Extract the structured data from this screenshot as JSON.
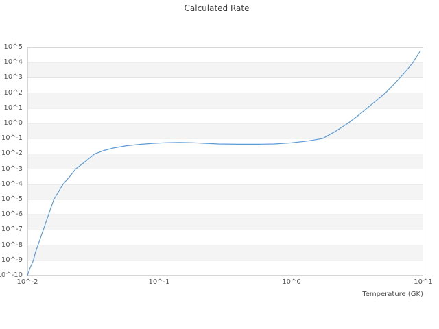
{
  "title": "Calculated Rate",
  "xlabel": "Temperature (GK)",
  "chart_data": {
    "type": "line",
    "title": "Calculated Rate",
    "xlabel": "Temperature (GK)",
    "ylabel": "",
    "x_scale": "log10",
    "y_scale": "log10",
    "xlim_log10": [
      -2,
      1
    ],
    "ylim_log10": [
      -10,
      5
    ],
    "grid": "horizontal-only",
    "legend": "none",
    "x_ticks": [
      {
        "log10": -2,
        "label": "10^-2"
      },
      {
        "log10": -1,
        "label": "10^-1"
      },
      {
        "log10": 0,
        "label": "10^0"
      },
      {
        "log10": 1,
        "label": "10^1"
      }
    ],
    "y_ticks": [
      {
        "log10": 5,
        "label": "10^5"
      },
      {
        "log10": 4,
        "label": "10^4"
      },
      {
        "log10": 3,
        "label": "10^3"
      },
      {
        "log10": 2,
        "label": "10^2"
      },
      {
        "log10": 1,
        "label": "10^1"
      },
      {
        "log10": 0,
        "label": "10^0"
      },
      {
        "log10": -1,
        "label": "10^-1"
      },
      {
        "log10": -2,
        "label": "10^-2"
      },
      {
        "log10": -3,
        "label": "10^-3"
      },
      {
        "log10": -4,
        "label": "10^-4"
      },
      {
        "log10": -5,
        "label": "10^-5"
      },
      {
        "log10": -6,
        "label": "10^-6"
      },
      {
        "log10": -7,
        "label": "10^-7"
      },
      {
        "log10": -8,
        "label": "10^-8"
      },
      {
        "log10": -9,
        "label": "10^-9"
      },
      {
        "log10": -10,
        "label": "10^-10"
      }
    ],
    "shaded_bands_log10": [
      [
        4,
        3
      ],
      [
        2,
        1
      ],
      [
        0,
        -1
      ],
      [
        -2,
        -3
      ],
      [
        -4,
        -5
      ],
      [
        -6,
        -7
      ],
      [
        -8,
        -9
      ]
    ],
    "colors": {
      "line": "#5b9bd5",
      "band": "#f4f4f4",
      "grid": "#e3e3e3",
      "border": "#d6d6d6",
      "plot_bg": "#ffffff",
      "tick_text": "#555555",
      "title_text": "#3f3f3f"
    },
    "series": [
      {
        "name": "calculated-rate",
        "color": "#5b9bd5",
        "points_log10": [
          [
            -2.0,
            -10.0
          ],
          [
            -1.98,
            -9.5
          ],
          [
            -1.955,
            -9.0
          ],
          [
            -1.94,
            -8.5
          ],
          [
            -1.92,
            -8.0
          ],
          [
            -1.9,
            -7.5
          ],
          [
            -1.88,
            -7.0
          ],
          [
            -1.86,
            -6.5
          ],
          [
            -1.84,
            -6.0
          ],
          [
            -1.82,
            -5.5
          ],
          [
            -1.8,
            -5.0
          ],
          [
            -1.765,
            -4.5
          ],
          [
            -1.73,
            -4.0
          ],
          [
            -1.68,
            -3.5
          ],
          [
            -1.635,
            -3.0
          ],
          [
            -1.56,
            -2.5
          ],
          [
            -1.49,
            -2.0
          ],
          [
            -1.42,
            -1.78
          ],
          [
            -1.35,
            -1.62
          ],
          [
            -1.25,
            -1.47
          ],
          [
            -1.15,
            -1.38
          ],
          [
            -1.05,
            -1.31
          ],
          [
            -0.95,
            -1.27
          ],
          [
            -0.85,
            -1.25
          ],
          [
            -0.75,
            -1.27
          ],
          [
            -0.65,
            -1.31
          ],
          [
            -0.55,
            -1.35
          ],
          [
            -0.4,
            -1.37
          ],
          [
            -0.25,
            -1.37
          ],
          [
            -0.13,
            -1.35
          ],
          [
            0.0,
            -1.28
          ],
          [
            0.12,
            -1.16
          ],
          [
            0.236,
            -1.0
          ],
          [
            0.33,
            -0.55
          ],
          [
            0.428,
            0.0
          ],
          [
            0.5,
            0.47
          ],
          [
            0.574,
            1.0
          ],
          [
            0.645,
            1.5
          ],
          [
            0.714,
            2.0
          ],
          [
            0.77,
            2.5
          ],
          [
            0.824,
            3.0
          ],
          [
            0.875,
            3.5
          ],
          [
            0.922,
            4.0
          ],
          [
            0.95,
            4.4
          ],
          [
            0.978,
            4.75
          ]
        ]
      }
    ]
  }
}
